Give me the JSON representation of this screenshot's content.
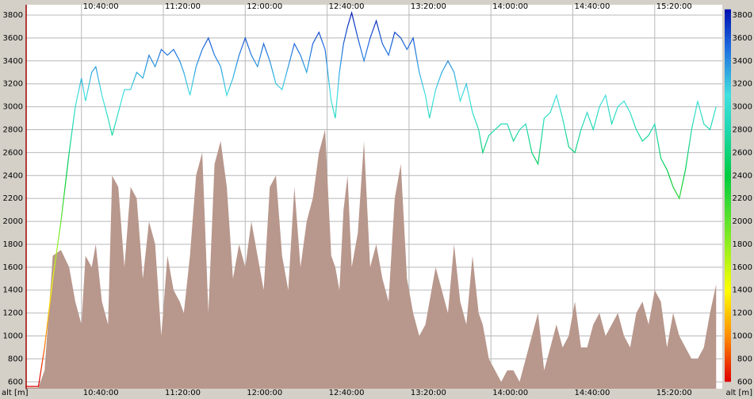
{
  "chart_data": {
    "type": "line",
    "axis_label": "alt [m]",
    "x": [
      613,
      619,
      622,
      626,
      630,
      634,
      637,
      640,
      642,
      645,
      647,
      650,
      653,
      655,
      658,
      661,
      664,
      667,
      670,
      673,
      676,
      679,
      682,
      685,
      688,
      690,
      693,
      696,
      699,
      702,
      705,
      708,
      711,
      714,
      717,
      720,
      723,
      726,
      729,
      732,
      735,
      738,
      741,
      744,
      747,
      750,
      753,
      756,
      759,
      762,
      764,
      766,
      768,
      770,
      772,
      775,
      778,
      781,
      784,
      787,
      790,
      793,
      796,
      799,
      802,
      805,
      808,
      810,
      813,
      816,
      819,
      822,
      825,
      828,
      831,
      834,
      836,
      839,
      842,
      845,
      848,
      851,
      854,
      857,
      860,
      863,
      866,
      869,
      872,
      875,
      878,
      881,
      884,
      887,
      890,
      893,
      896,
      899,
      902,
      905,
      908,
      911,
      914,
      917,
      920,
      923,
      926,
      929,
      932,
      935,
      938,
      941,
      944,
      947,
      950
    ],
    "series": [
      {
        "style": "line",
        "values": [
          560,
          560,
          900,
          1500,
          2000,
          2600,
          3000,
          3250,
          3050,
          3300,
          3350,
          3100,
          2900,
          2750,
          2950,
          3150,
          3150,
          3300,
          3250,
          3450,
          3350,
          3500,
          3450,
          3500,
          3400,
          3300,
          3100,
          3350,
          3500,
          3600,
          3450,
          3350,
          3100,
          3250,
          3450,
          3600,
          3450,
          3350,
          3550,
          3400,
          3200,
          3150,
          3350,
          3550,
          3450,
          3300,
          3550,
          3650,
          3500,
          3050,
          2900,
          3300,
          3550,
          3700,
          3820,
          3600,
          3400,
          3600,
          3750,
          3550,
          3450,
          3650,
          3600,
          3500,
          3600,
          3300,
          3100,
          2900,
          3150,
          3300,
          3400,
          3300,
          3050,
          3200,
          2950,
          2800,
          2600,
          2750,
          2800,
          2850,
          2850,
          2700,
          2800,
          2850,
          2600,
          2500,
          2900,
          2950,
          3100,
          2900,
          2650,
          2600,
          2800,
          2950,
          2800,
          3000,
          3100,
          2850,
          3000,
          3050,
          2950,
          2800,
          2700,
          2750,
          2850,
          2550,
          2450,
          2300,
          2200,
          2450,
          2800,
          3050,
          2850,
          2800,
          3000
        ]
      },
      {
        "style": "area",
        "color": "#b8978c",
        "values": [
          550,
          550,
          700,
          1700,
          1750,
          1600,
          1300,
          1100,
          1700,
          1600,
          1800,
          1300,
          1100,
          2400,
          2300,
          1600,
          2300,
          2200,
          1500,
          2000,
          1800,
          1000,
          1700,
          1400,
          1300,
          1200,
          1700,
          2400,
          2600,
          1200,
          2500,
          2700,
          2300,
          1500,
          1800,
          1600,
          2000,
          1700,
          1400,
          2300,
          2400,
          1700,
          1400,
          2300,
          1600,
          2000,
          2200,
          2600,
          2800,
          1700,
          1600,
          1400,
          2100,
          2400,
          1600,
          1900,
          2700,
          1600,
          1800,
          1500,
          1300,
          2200,
          2500,
          1500,
          1200,
          1000,
          1100,
          1300,
          1600,
          1400,
          1200,
          1800,
          1300,
          1100,
          1700,
          1200,
          1100,
          800,
          700,
          600,
          700,
          700,
          600,
          800,
          1000,
          1200,
          700,
          900,
          1100,
          900,
          1000,
          1300,
          900,
          900,
          1100,
          1200,
          1000,
          1100,
          1200,
          1000,
          900,
          1200,
          1300,
          1100,
          1400,
          1300,
          900,
          1200,
          1000,
          900,
          800,
          800,
          900,
          1200,
          1450
        ]
      }
    ],
    "colormap": [
      {
        "value": 600,
        "color": "#e00000"
      },
      {
        "value": 1000,
        "color": "#ff8c00"
      },
      {
        "value": 1400,
        "color": "#ffff00"
      },
      {
        "value": 1800,
        "color": "#90ee20"
      },
      {
        "value": 2400,
        "color": "#00cc40"
      },
      {
        "value": 2800,
        "color": "#20d8b0"
      },
      {
        "value": 3100,
        "color": "#40e0e0"
      },
      {
        "value": 3500,
        "color": "#2070e0"
      },
      {
        "value": 3850,
        "color": "#0010b0"
      }
    ],
    "xlim": [
      613,
      953
    ],
    "xticks": [
      {
        "value": 640,
        "label": "10:40:00"
      },
      {
        "value": 680,
        "label": "11:20:00"
      },
      {
        "value": 720,
        "label": "12:00:00"
      },
      {
        "value": 760,
        "label": "12:40:00"
      },
      {
        "value": 800,
        "label": "13:20:00"
      },
      {
        "value": 840,
        "label": "14:00:00"
      },
      {
        "value": 880,
        "label": "14:40:00"
      },
      {
        "value": 920,
        "label": "15:20:00"
      }
    ],
    "ylim": [
      540,
      3890
    ],
    "yticks": [
      600,
      800,
      1000,
      1200,
      1400,
      1600,
      1800,
      2000,
      2200,
      2400,
      2600,
      2800,
      3000,
      3200,
      3400,
      3600,
      3800
    ],
    "grid": true
  }
}
